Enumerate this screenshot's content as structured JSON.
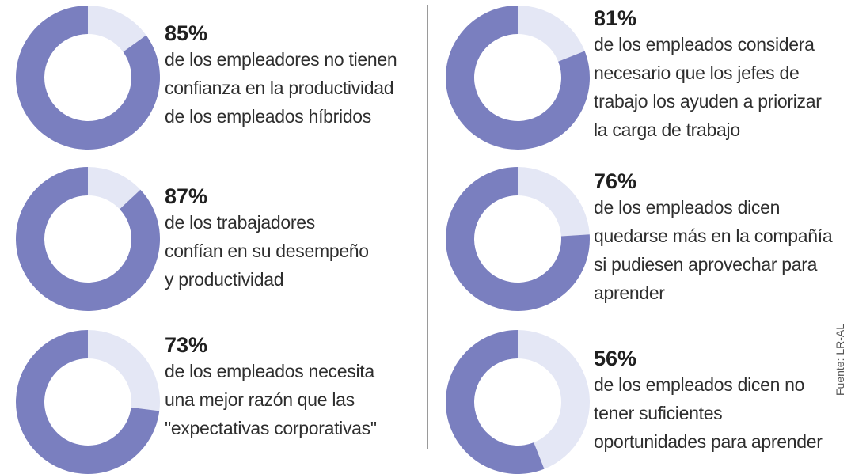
{
  "colors": {
    "filled": "#7a7fbf",
    "remainder": "#e4e7f5"
  },
  "chart_data": [
    {
      "type": "pie",
      "subtype": "donut",
      "value": 85,
      "label": "85%",
      "lines": [
        "de los empleadores no tienen",
        "confianza en la productividad",
        "de los empleados híbridos"
      ]
    },
    {
      "type": "pie",
      "subtype": "donut",
      "value": 87,
      "label": "87%",
      "lines": [
        "de los trabajadores",
        "confían en su desempeño",
        "y productividad"
      ]
    },
    {
      "type": "pie",
      "subtype": "donut",
      "value": 73,
      "label": "73%",
      "lines": [
        "de los empleados necesita",
        "una mejor razón que las",
        "\"expectativas corporativas\""
      ]
    },
    {
      "type": "pie",
      "subtype": "donut",
      "value": 81,
      "label": "81%",
      "lines": [
        "de los empleados considera",
        "necesario que los jefes de",
        "trabajo los ayuden a priorizar",
        "la carga de trabajo"
      ]
    },
    {
      "type": "pie",
      "subtype": "donut",
      "value": 76,
      "label": "76%",
      "lines": [
        "de los empleados dicen",
        "quedarse más en la compañía",
        "si pudiesen aprovechar para",
        "aprender"
      ]
    },
    {
      "type": "pie",
      "subtype": "donut",
      "value": 56,
      "label": "56%",
      "lines": [
        "de los empleados dicen no",
        "tener suficientes",
        "oportunidades para aprender"
      ]
    }
  ],
  "source": "Fuente: LR-AL"
}
